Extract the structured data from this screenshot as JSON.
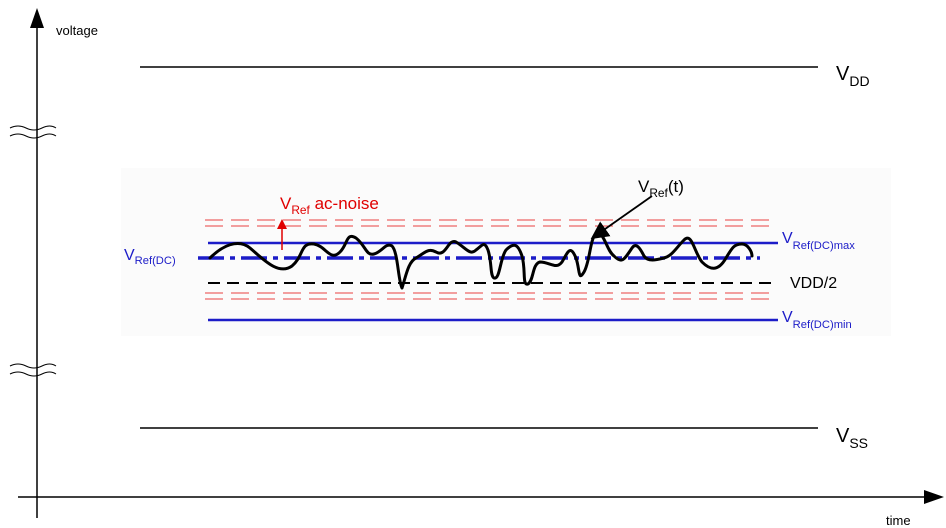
{
  "axes": {
    "y_label": "voltage",
    "x_label": "time"
  },
  "rails": {
    "top": {
      "base": "V",
      "sub": "DD"
    },
    "bottom": {
      "base": "V",
      "sub": "SS"
    }
  },
  "inset": {
    "noise_label": {
      "base": "V",
      "sub": "Ref",
      "rest": " ac-noise"
    },
    "signal_label": {
      "base": "V",
      "sub": "Ref",
      "rest": "(t)"
    },
    "dc_label": {
      "base": "V",
      "sub": "Ref(DC)"
    },
    "max_label": {
      "base": "V",
      "sub": "Ref(DC)max"
    },
    "mid_label": "VDD/2",
    "min_label": {
      "base": "V",
      "sub": "Ref(DC)min"
    }
  },
  "colors": {
    "axis": "#000000",
    "reference": "#1c1cc8",
    "noise_band": "#e84040",
    "noise_arrow": "#e00000",
    "signal": "#000000",
    "inset_bg": "#fbfbfb"
  }
}
